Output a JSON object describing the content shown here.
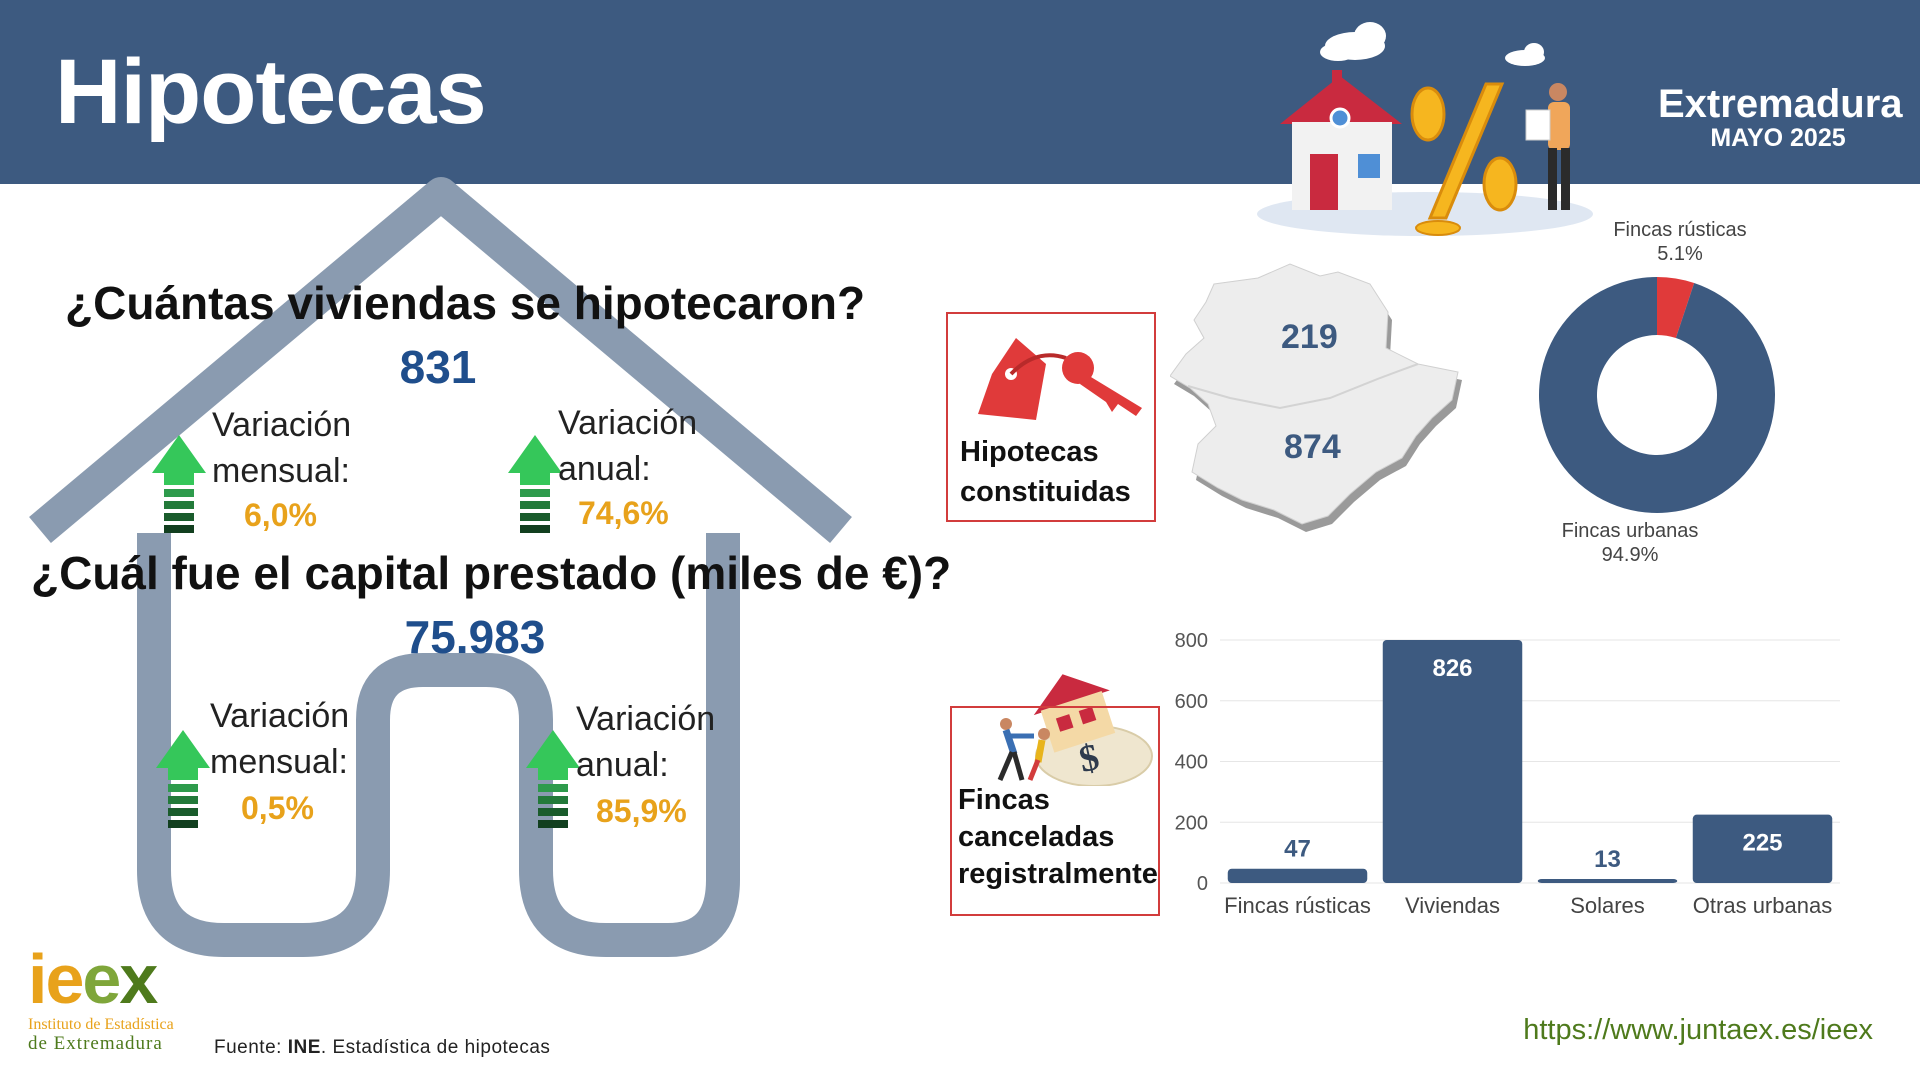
{
  "header": {
    "title": "Hipotecas",
    "region": "Extremadura",
    "period": "MAYO 2025"
  },
  "houses": {
    "question": "¿Cuántas viviendas se hipotecaron?",
    "value": "831",
    "monthly_label": "Variación mensual:",
    "monthly_value": "6,0%",
    "annual_label": "Variación anual:",
    "annual_value": "74,6%"
  },
  "capital": {
    "question": "¿Cuál fue el capital prestado (miles de €)?",
    "value": "75.983",
    "monthly_label": "Variación mensual:",
    "monthly_value": "0,5%",
    "annual_label": "Variación anual:",
    "annual_value": "85,9%"
  },
  "constituted": {
    "label_line1": "Hipotecas",
    "label_line2": "constituidas",
    "map_values": {
      "north": "219",
      "south": "874"
    }
  },
  "donut": {
    "type": "pie",
    "slices": [
      {
        "name": "Fincas rústicas",
        "pct_label": "5.1%",
        "value": 5.1,
        "color": "#e03a3a"
      },
      {
        "name": "Fincas urbanas",
        "pct_label": "94.9%",
        "value": 94.9,
        "color": "#3d5a80"
      }
    ]
  },
  "cancelled": {
    "label_line1": "Fincas",
    "label_line2": "canceladas",
    "label_line3": "registralmente"
  },
  "chart_data": {
    "type": "bar",
    "categories": [
      "Fincas rústicas",
      "Viviendas",
      "Solares",
      "Otras urbanas"
    ],
    "values": [
      47,
      826,
      13,
      225
    ],
    "ylim": [
      0,
      800
    ],
    "yticks": [
      0,
      200,
      400,
      600,
      800
    ],
    "bar_color": "#3d5a80",
    "grid": true
  },
  "footer": {
    "logo_text": "ieex",
    "logo_sub1": "Instituto de Estadística",
    "logo_sub2": "de Extremadura",
    "source_prefix": "Fuente: ",
    "source_org": "INE",
    "source_rest": ". Estadística de hipotecas",
    "url": "https://www.juntaex.es/ieex"
  },
  "colors": {
    "header": "#3d5a80",
    "accent": "#e8a21b",
    "number": "#1f4e8c",
    "arrow": "#35c75a",
    "house_outline": "#8a9bb0"
  }
}
